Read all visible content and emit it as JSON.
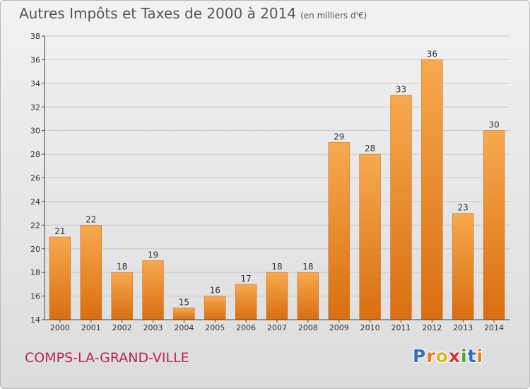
{
  "header": {
    "title": "Autres Impôts et Taxes de 2000 à 2014",
    "unit": "(en milliers d'€)"
  },
  "footer": {
    "commune": "COMPS-LA-GRAND-VILLE",
    "logo_letters": [
      "P",
      "r",
      "o",
      "x",
      "i",
      "t",
      "i"
    ],
    "logo_colors": [
      "#2f6fbf",
      "#e87a1e",
      "#d4b820",
      "#d62f2f",
      "#4aa832",
      "#2f6fbf",
      "#e87a1e"
    ]
  },
  "chart_data": {
    "type": "bar",
    "categories": [
      "2000",
      "2001",
      "2002",
      "2003",
      "2004",
      "2005",
      "2006",
      "2007",
      "2008",
      "2009",
      "2010",
      "2011",
      "2012",
      "2013",
      "2014"
    ],
    "values": [
      21,
      22,
      18,
      19,
      15,
      16,
      17,
      18,
      18,
      29,
      28,
      33,
      36,
      23,
      30
    ],
    "ylim": [
      14,
      38
    ],
    "yticks": [
      14,
      16,
      18,
      20,
      22,
      24,
      26,
      28,
      30,
      32,
      34,
      36,
      38
    ],
    "grid": true,
    "bar_color": "#f0922e"
  }
}
